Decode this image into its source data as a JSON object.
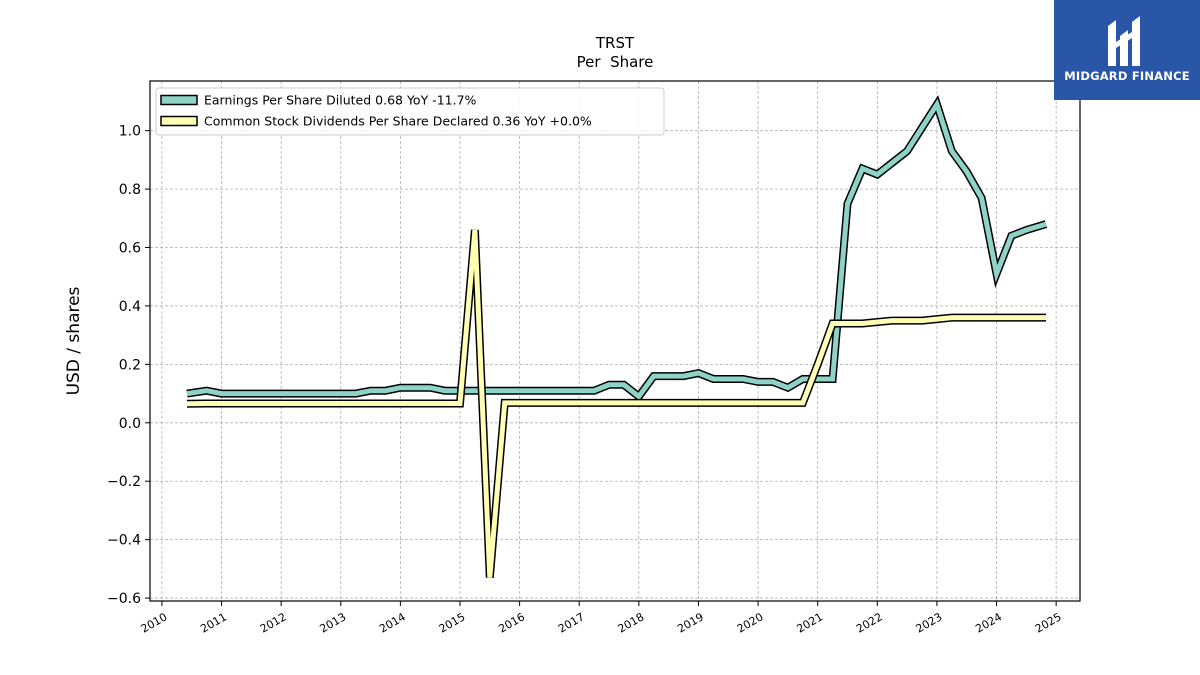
{
  "logo": {
    "text": "MIDGARD FINANCE",
    "background": "#2a56a8"
  },
  "chart_data": {
    "type": "line",
    "title": "TRST",
    "subtitle": "Per  Share",
    "ylabel": "USD / shares",
    "xlabel": "",
    "xlim": [
      2009.8,
      2025.4
    ],
    "ylim": [
      -0.61,
      1.17
    ],
    "yticks": [
      -0.6,
      -0.4,
      -0.2,
      0.0,
      0.2,
      0.4,
      0.6,
      0.8,
      1.0
    ],
    "ytick_labels": [
      "−0.6",
      "−0.4",
      "−0.2",
      "0.0",
      "0.2",
      "0.4",
      "0.6",
      "0.8",
      "1.0"
    ],
    "xticks": [
      2010,
      2011,
      2012,
      2013,
      2014,
      2015,
      2016,
      2017,
      2018,
      2019,
      2020,
      2021,
      2022,
      2023,
      2024,
      2025
    ],
    "xtick_labels": [
      "2010",
      "2011",
      "2012",
      "2013",
      "2014",
      "2015",
      "2016",
      "2017",
      "2018",
      "2019",
      "2020",
      "2021",
      "2022",
      "2023",
      "2024",
      "2025"
    ],
    "grid": true,
    "legend_position": "top-left",
    "series": [
      {
        "name": "Earnings Per Share Diluted  0.68 YoY -11.7%",
        "color": "#8dd3c7",
        "x": [
          2010.42,
          2010.75,
          2011.0,
          2011.25,
          2011.5,
          2011.75,
          2012.0,
          2012.25,
          2012.5,
          2012.75,
          2013.0,
          2013.25,
          2013.5,
          2013.75,
          2014.0,
          2014.25,
          2014.5,
          2014.75,
          2015.0,
          2015.25,
          2015.5,
          2015.75,
          2016.0,
          2016.25,
          2016.5,
          2016.75,
          2017.0,
          2017.25,
          2017.5,
          2017.75,
          2018.0,
          2018.25,
          2018.5,
          2018.75,
          2019.0,
          2019.25,
          2019.5,
          2019.75,
          2020.0,
          2020.25,
          2020.5,
          2020.75,
          2021.0,
          2021.25,
          2021.5,
          2021.75,
          2022.0,
          2022.25,
          2022.5,
          2022.75,
          2023.0,
          2023.25,
          2023.5,
          2023.75,
          2024.0,
          2024.25,
          2024.5,
          2024.83
        ],
        "values": [
          0.1,
          0.11,
          0.1,
          0.1,
          0.1,
          0.1,
          0.1,
          0.1,
          0.1,
          0.1,
          0.1,
          0.1,
          0.11,
          0.11,
          0.12,
          0.12,
          0.12,
          0.11,
          0.11,
          0.11,
          0.11,
          0.11,
          0.11,
          0.11,
          0.11,
          0.11,
          0.11,
          0.11,
          0.13,
          0.13,
          0.09,
          0.16,
          0.16,
          0.16,
          0.17,
          0.15,
          0.15,
          0.15,
          0.14,
          0.14,
          0.12,
          0.15,
          0.15,
          0.15,
          0.75,
          0.87,
          0.85,
          0.89,
          0.93,
          1.01,
          1.09,
          0.93,
          0.86,
          0.77,
          0.51,
          0.64,
          0.66,
          0.68
        ]
      },
      {
        "name": "Common Stock Dividends Per Share Declared  0.36 YoY +0.0%",
        "color": "#ffffb3",
        "x": [
          2010.42,
          2010.75,
          2011.0,
          2011.5,
          2012.0,
          2012.5,
          2013.0,
          2013.5,
          2014.0,
          2014.5,
          2015.0,
          2015.25,
          2015.5,
          2015.75,
          2016.0,
          2016.5,
          2017.0,
          2017.5,
          2018.0,
          2018.5,
          2019.0,
          2019.5,
          2020.0,
          2020.5,
          2020.75,
          2021.0,
          2021.25,
          2021.5,
          2021.75,
          2022.0,
          2022.25,
          2022.5,
          2022.75,
          2023.0,
          2023.25,
          2023.5,
          2023.75,
          2024.0,
          2024.25,
          2024.5,
          2024.83
        ],
        "values": [
          0.065,
          0.066,
          0.066,
          0.066,
          0.066,
          0.066,
          0.066,
          0.066,
          0.066,
          0.066,
          0.066,
          0.66,
          -0.53,
          0.068,
          0.068,
          0.068,
          0.068,
          0.068,
          0.068,
          0.068,
          0.068,
          0.068,
          0.068,
          0.068,
          0.068,
          0.2,
          0.34,
          0.34,
          0.34,
          0.345,
          0.35,
          0.35,
          0.35,
          0.355,
          0.36,
          0.36,
          0.36,
          0.36,
          0.36,
          0.36,
          0.36
        ]
      }
    ]
  }
}
